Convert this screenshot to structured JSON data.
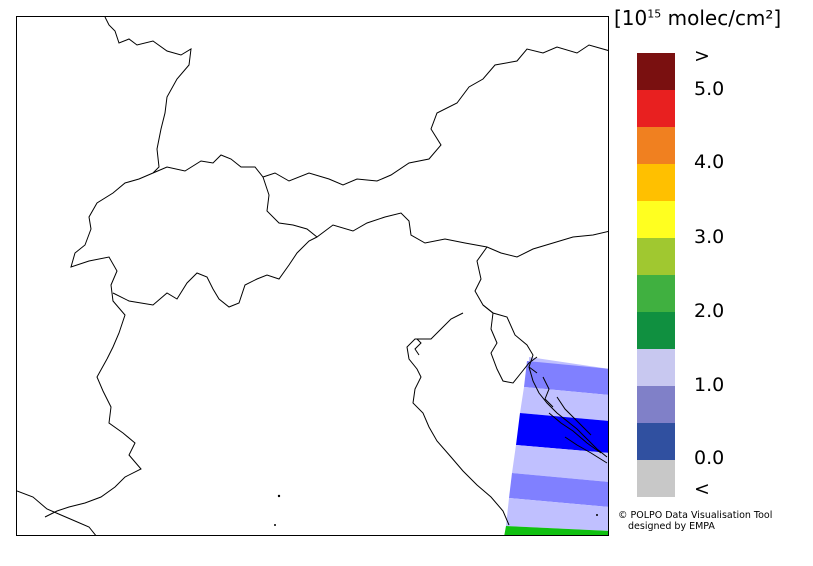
{
  "legend": {
    "unit_prefix": "[10",
    "unit_exponent": "15",
    "unit_suffix": " molec/cm²]",
    "colors": [
      "#7a1010",
      "#e82020",
      "#f08020",
      "#ffc000",
      "#ffff20",
      "#a0c830",
      "#40b040",
      "#109040",
      "#c8c8f0",
      "#8080c8",
      "#3050a0",
      "#c8c8c8"
    ],
    "labels": [
      ">",
      "5.0",
      "4.0",
      "3.0",
      "2.0",
      "1.0",
      "0.0",
      "<"
    ]
  },
  "credit": {
    "line1": "© POLPO Data Visualisation Tool",
    "line2": "designed by EMPA"
  },
  "swath_colors": {
    "light": "#c0c0ff",
    "medium": "#8080ff",
    "dark": "#0000ff",
    "green": "#10c010"
  }
}
